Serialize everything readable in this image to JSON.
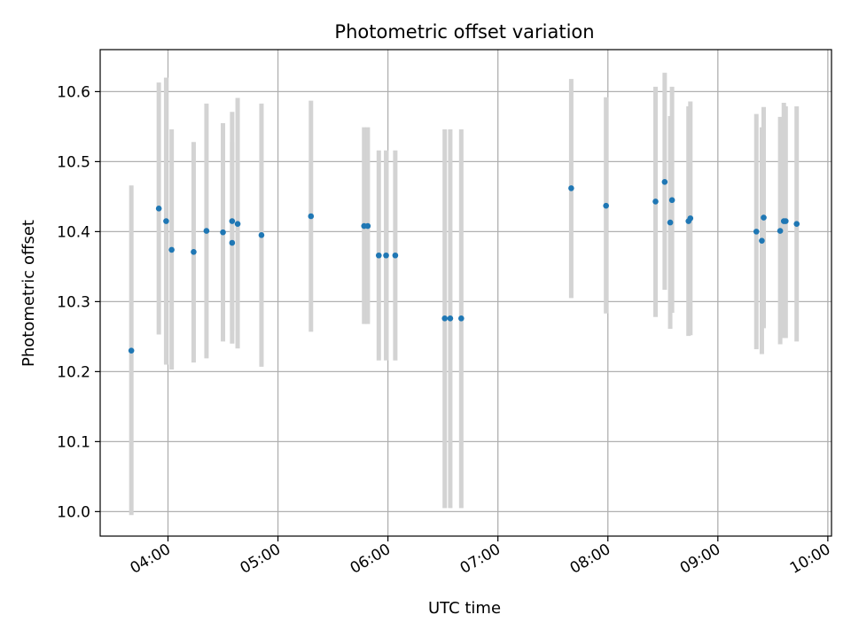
{
  "chart_data": {
    "type": "scatter",
    "title": "Photometric offset variation",
    "xlabel": "UTC time",
    "ylabel": "Photometric offset",
    "x_unit": "UTC time (HH:MM)",
    "xlim": [
      "03:23",
      "10:02"
    ],
    "ylim": [
      9.965,
      10.66
    ],
    "x_ticks": [
      "04:00",
      "05:00",
      "06:00",
      "07:00",
      "08:00",
      "09:00",
      "10:00"
    ],
    "y_ticks": [
      10.0,
      10.1,
      10.2,
      10.3,
      10.4,
      10.5,
      10.6
    ],
    "grid": true,
    "legend": "none",
    "colors": {
      "point": "#1f77b4",
      "errorbar": "#d3d3d3",
      "grid": "#b0b0b0"
    },
    "points": [
      {
        "x": "03:40",
        "y": 10.23,
        "ylo": 9.995,
        "yhi": 10.466
      },
      {
        "x": "03:55",
        "y": 10.433,
        "ylo": 10.253,
        "yhi": 10.613
      },
      {
        "x": "03:59",
        "y": 10.415,
        "ylo": 10.21,
        "yhi": 10.62
      },
      {
        "x": "04:02",
        "y": 10.374,
        "ylo": 10.203,
        "yhi": 10.546
      },
      {
        "x": "04:14",
        "y": 10.371,
        "ylo": 10.213,
        "yhi": 10.528
      },
      {
        "x": "04:21",
        "y": 10.401,
        "ylo": 10.219,
        "yhi": 10.583
      },
      {
        "x": "04:30",
        "y": 10.399,
        "ylo": 10.243,
        "yhi": 10.555
      },
      {
        "x": "04:35",
        "y": 10.415,
        "ylo": 10.258,
        "yhi": 10.571
      },
      {
        "x": "04:35",
        "y": 10.384,
        "ylo": 10.24,
        "yhi": 10.528
      },
      {
        "x": "04:38",
        "y": 10.411,
        "ylo": 10.233,
        "yhi": 10.591
      },
      {
        "x": "04:51",
        "y": 10.395,
        "ylo": 10.207,
        "yhi": 10.583
      },
      {
        "x": "05:18",
        "y": 10.422,
        "ylo": 10.257,
        "yhi": 10.587
      },
      {
        "x": "05:47",
        "y": 10.408,
        "ylo": 10.268,
        "yhi": 10.549
      },
      {
        "x": "05:49",
        "y": 10.408,
        "ylo": 10.268,
        "yhi": 10.549
      },
      {
        "x": "05:55",
        "y": 10.366,
        "ylo": 10.216,
        "yhi": 10.516
      },
      {
        "x": "05:59",
        "y": 10.366,
        "ylo": 10.216,
        "yhi": 10.516
      },
      {
        "x": "06:04",
        "y": 10.366,
        "ylo": 10.216,
        "yhi": 10.516
      },
      {
        "x": "06:31",
        "y": 10.276,
        "ylo": 10.005,
        "yhi": 10.546
      },
      {
        "x": "06:34",
        "y": 10.276,
        "ylo": 10.005,
        "yhi": 10.546
      },
      {
        "x": "06:40",
        "y": 10.276,
        "ylo": 10.005,
        "yhi": 10.546
      },
      {
        "x": "07:40",
        "y": 10.462,
        "ylo": 10.305,
        "yhi": 10.618
      },
      {
        "x": "07:59",
        "y": 10.437,
        "ylo": 10.283,
        "yhi": 10.592
      },
      {
        "x": "08:26",
        "y": 10.443,
        "ylo": 10.278,
        "yhi": 10.607
      },
      {
        "x": "08:31",
        "y": 10.471,
        "ylo": 10.317,
        "yhi": 10.627
      },
      {
        "x": "08:34",
        "y": 10.413,
        "ylo": 10.261,
        "yhi": 10.565
      },
      {
        "x": "08:35",
        "y": 10.445,
        "ylo": 10.284,
        "yhi": 10.607
      },
      {
        "x": "08:44",
        "y": 10.415,
        "ylo": 10.251,
        "yhi": 10.579
      },
      {
        "x": "08:45",
        "y": 10.419,
        "ylo": 10.252,
        "yhi": 10.586
      },
      {
        "x": "09:21",
        "y": 10.4,
        "ylo": 10.232,
        "yhi": 10.568
      },
      {
        "x": "09:24",
        "y": 10.387,
        "ylo": 10.225,
        "yhi": 10.549
      },
      {
        "x": "09:25",
        "y": 10.42,
        "ylo": 10.262,
        "yhi": 10.578
      },
      {
        "x": "09:34",
        "y": 10.401,
        "ylo": 10.239,
        "yhi": 10.564
      },
      {
        "x": "09:36",
        "y": 10.415,
        "ylo": 10.248,
        "yhi": 10.584
      },
      {
        "x": "09:37",
        "y": 10.415,
        "ylo": 10.248,
        "yhi": 10.579
      },
      {
        "x": "09:43",
        "y": 10.411,
        "ylo": 10.243,
        "yhi": 10.579
      }
    ]
  }
}
